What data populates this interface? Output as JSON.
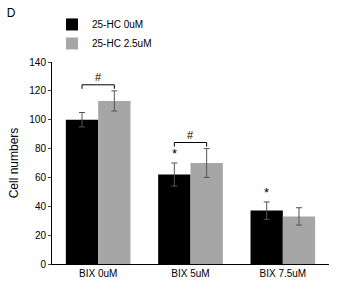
{
  "chart_data": {
    "type": "bar",
    "title": "D",
    "y_label": "Cell numbers",
    "categories": [
      "BIX 0uM",
      "BIX 5uM",
      "BIX 7.5uM"
    ],
    "series": [
      {
        "name": "25-HC 0uM",
        "color": "#000000",
        "values": [
          100,
          62,
          37
        ],
        "errors": [
          5,
          8,
          6
        ]
      },
      {
        "name": "25-HC 2.5uM",
        "color": "#a6a6a6",
        "values": [
          113,
          70,
          33
        ],
        "errors": [
          7,
          10,
          6
        ]
      }
    ],
    "ylim": [
      0,
      140
    ],
    "yticks": [
      0,
      20,
      40,
      60,
      80,
      100,
      120,
      140
    ],
    "grid": false,
    "legend": "upper left",
    "annotations": [
      {
        "text": "#",
        "category": "BIX 0uM",
        "bracket": true
      },
      {
        "text": "#",
        "category": "BIX 5uM",
        "bracket": true
      },
      {
        "text": "*",
        "category": "BIX 5uM",
        "series": "25-HC 0uM"
      },
      {
        "text": "*",
        "category": "BIX 7.5uM",
        "series": "25-HC 0uM"
      }
    ]
  }
}
